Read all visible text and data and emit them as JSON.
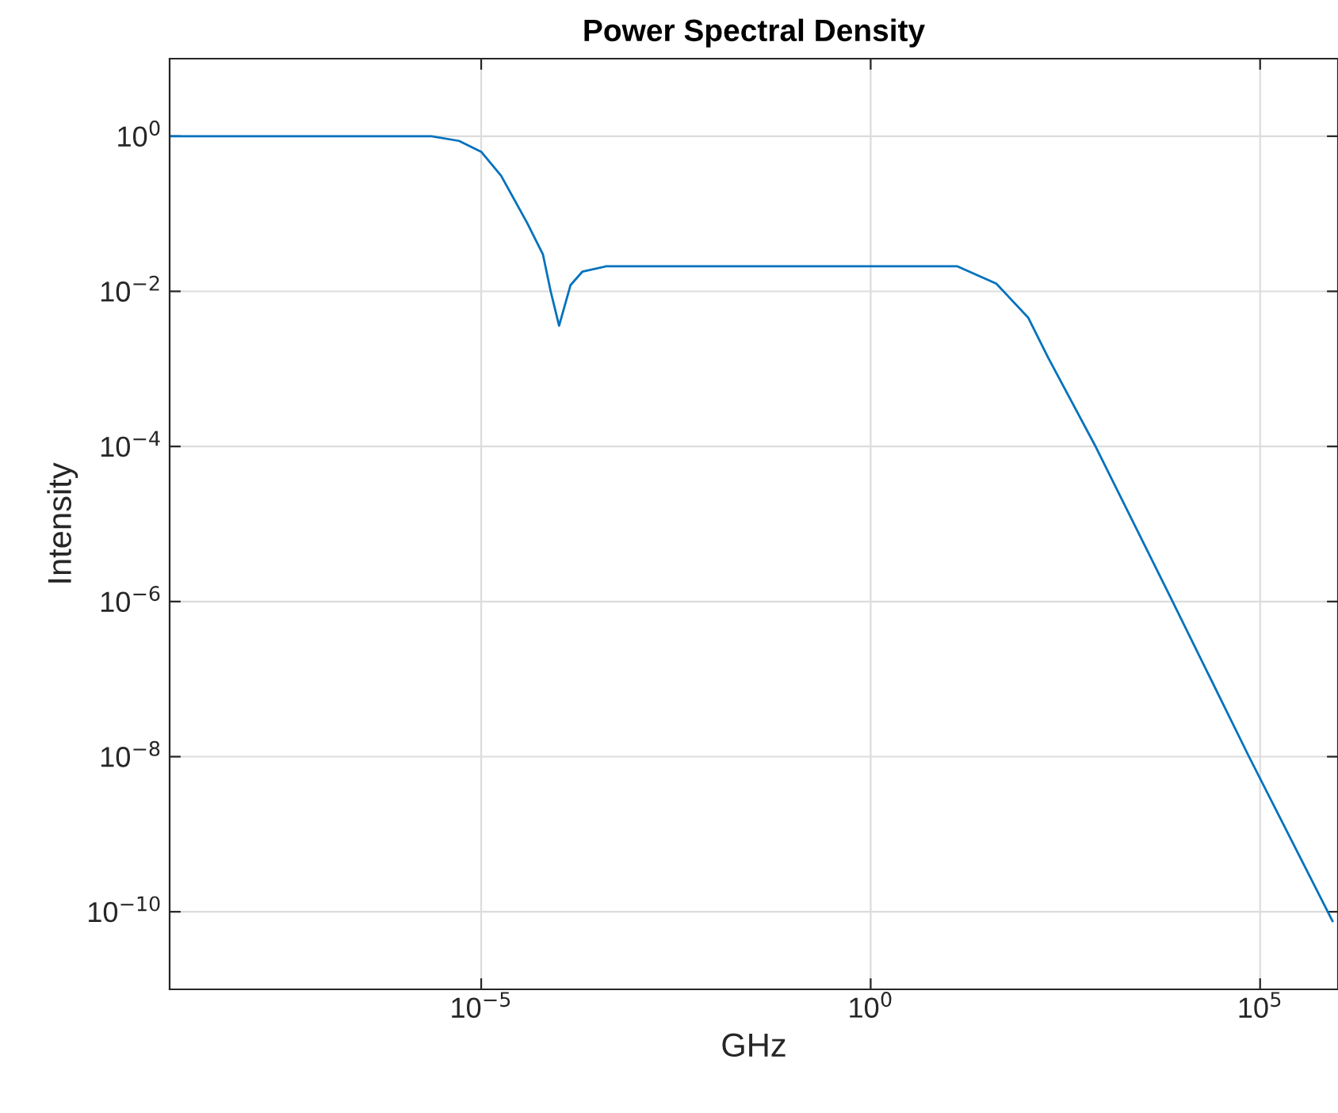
{
  "chart_data": {
    "type": "line",
    "title": "Power Spectral Density",
    "xlabel": "GHz",
    "ylabel": "Intensity",
    "log": "xy",
    "grid": true,
    "line_style": "solid",
    "x": [
      1e-09,
      1e-07,
      2.3e-06,
      5.2e-06,
      1e-05,
      1.8e-05,
      3.9e-05,
      6.2e-05,
      7.8e-05,
      0.0001,
      0.00014,
      0.0002,
      0.0004,
      1,
      13,
      41,
      105,
      190,
      780,
      7600,
      72000,
      850000
    ],
    "series": [
      {
        "color": "#0072bd",
        "values": [
          1,
          1,
          1,
          0.87,
          0.63,
          0.31,
          0.076,
          0.03,
          0.01,
          0.0036,
          0.012,
          0.018,
          0.021,
          0.021,
          0.021,
          0.0126,
          0.0046,
          0.0014,
          9.8e-05,
          9.8e-07,
          1e-08,
          7.6e-11
        ]
      }
    ],
    "xlim": [
      1e-09,
      1000000.0
    ],
    "ylim": [
      1e-11,
      10
    ],
    "xticks": [
      {
        "value": 1e-05,
        "label": "10$^{−5}$"
      },
      {
        "value": 1,
        "label": "10$^{0}$"
      },
      {
        "value": 100000.0,
        "label": "10$^{5}$"
      }
    ],
    "yticks": [
      {
        "value": 1e-10,
        "label": "10$^{−10}$"
      },
      {
        "value": 1e-08,
        "label": "10$^{−8}$"
      },
      {
        "value": 1e-06,
        "label": "10$^{−6}$"
      },
      {
        "value": 0.0001,
        "label": "10$^{−4}$"
      },
      {
        "value": 0.01,
        "label": "10$^{−2}$"
      },
      {
        "value": 1,
        "label": "10$^{0}$"
      }
    ]
  }
}
